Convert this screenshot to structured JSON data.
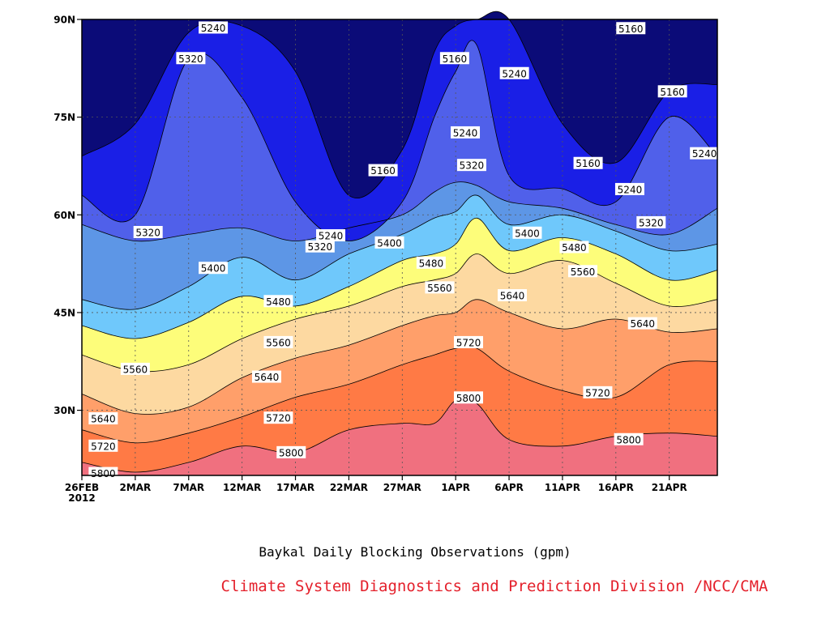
{
  "chart_data": {
    "type": "contour",
    "title": "Baykal Daily Blocking Observations (gpm)",
    "x_ticks": [
      {
        "d": 0,
        "label": "26FEB",
        "sub": "2012"
      },
      {
        "d": 5,
        "label": "2MAR"
      },
      {
        "d": 10,
        "label": "7MAR"
      },
      {
        "d": 15,
        "label": "12MAR"
      },
      {
        "d": 20,
        "label": "17MAR"
      },
      {
        "d": 25,
        "label": "22MAR"
      },
      {
        "d": 30,
        "label": "27MAR"
      },
      {
        "d": 35,
        "label": "1APR"
      },
      {
        "d": 40,
        "label": "6APR"
      },
      {
        "d": 45,
        "label": "11APR"
      },
      {
        "d": 50,
        "label": "16APR"
      },
      {
        "d": 55,
        "label": "21APR"
      }
    ],
    "x_range_days": [
      0,
      59.5
    ],
    "y_ticks": [
      {
        "v": 30,
        "label": "30N"
      },
      {
        "v": 45,
        "label": "45N"
      },
      {
        "v": 60,
        "label": "60N"
      },
      {
        "v": 75,
        "label": "75N"
      },
      {
        "v": 90,
        "label": "90N"
      }
    ],
    "y_range": [
      20,
      90
    ],
    "grid": true,
    "levels": [
      5800,
      5720,
      5640,
      5560,
      5480,
      5400,
      5320,
      5240,
      5160
    ],
    "fill_colors": [
      "#f0707f",
      "#ff7a45",
      "#ff9f6a",
      "#fdd9a1",
      "#fdfd7a",
      "#6fc8fb",
      "#5d96e6",
      "#5060ea",
      "#1a1fe6",
      "#0b0b78"
    ],
    "contours": [
      {
        "level": 5800,
        "x": [
          0,
          5,
          10,
          15,
          20,
          25,
          30,
          33,
          35,
          37,
          40,
          45,
          50,
          55,
          59.5
        ],
        "y": [
          22,
          20.5,
          22,
          24.5,
          23.5,
          27,
          28,
          28,
          31.5,
          31,
          25.5,
          24.5,
          26,
          26.5,
          26
        ]
      },
      {
        "level": 5720,
        "x": [
          0,
          5,
          10,
          15,
          20,
          25,
          30,
          33,
          35,
          37,
          40,
          45,
          50,
          55,
          59.5
        ],
        "y": [
          27,
          25,
          26.5,
          29,
          32,
          34,
          37,
          38.5,
          39.5,
          39.5,
          36,
          33,
          32,
          37,
          37.5
        ]
      },
      {
        "level": 5640,
        "x": [
          0,
          5,
          10,
          15,
          20,
          25,
          30,
          33,
          35,
          37,
          40,
          45,
          50,
          55,
          59.5
        ],
        "y": [
          32.5,
          29.5,
          30.5,
          35,
          38,
          40,
          43,
          44.5,
          45,
          47,
          45,
          42.5,
          44,
          42,
          42.5
        ]
      },
      {
        "level": 5560,
        "x": [
          0,
          5,
          10,
          15,
          20,
          25,
          30,
          33,
          35,
          37,
          40,
          45,
          50,
          55,
          59.5
        ],
        "y": [
          38.5,
          36,
          37,
          41,
          44,
          46,
          49,
          50,
          51,
          54,
          51,
          53,
          49.5,
          46,
          47
        ]
      },
      {
        "level": 5480,
        "x": [
          0,
          5,
          10,
          15,
          20,
          25,
          30,
          33,
          35,
          37,
          40,
          45,
          50,
          55,
          59.5
        ],
        "y": [
          43,
          41,
          43.5,
          47.5,
          46,
          49,
          53,
          54,
          55.5,
          59.5,
          54.5,
          56.5,
          54,
          50,
          51.5
        ]
      },
      {
        "level": 5400,
        "x": [
          0,
          5,
          10,
          15,
          20,
          25,
          30,
          33,
          35,
          37,
          40,
          45,
          50,
          55,
          59.5
        ],
        "y": [
          47,
          45.5,
          49,
          53.5,
          50,
          54,
          57,
          59.5,
          60.5,
          63,
          58.5,
          60,
          57.5,
          54.5,
          55.5
        ]
      },
      {
        "level": 5320,
        "x": [
          0,
          5,
          10,
          15,
          20,
          25,
          30,
          33,
          35,
          37,
          40,
          45,
          50,
          55,
          59.5
        ],
        "y": [
          58.5,
          56,
          57,
          58,
          56,
          58,
          60,
          63.5,
          65,
          64.5,
          62,
          61,
          58.5,
          57,
          61
        ]
      },
      {
        "level": 5240,
        "x": [
          0,
          5,
          10,
          15,
          20,
          25,
          30,
          33,
          35,
          37,
          40,
          45,
          50,
          55,
          59.5
        ],
        "y": [
          63,
          60,
          84,
          78,
          62,
          56,
          62,
          75,
          82,
          86,
          66,
          64,
          62,
          75,
          69
        ]
      },
      {
        "level": 5160,
        "x": [
          0,
          5,
          10,
          15,
          20,
          25,
          30,
          33,
          35,
          37,
          40,
          45,
          50,
          55,
          59.5
        ],
        "y": [
          69,
          74,
          88,
          89,
          82,
          63,
          70,
          85,
          89,
          90,
          90,
          74,
          68,
          79,
          80
        ]
      }
    ],
    "contour_labels": [
      {
        "text": "5800",
        "d": 2.0,
        "lat": 20.3
      },
      {
        "text": "5720",
        "d": 2.0,
        "lat": 24.5
      },
      {
        "text": "5640",
        "d": 2.0,
        "lat": 28.7
      },
      {
        "text": "5560",
        "d": 5.0,
        "lat": 36.3
      },
      {
        "text": "5320",
        "d": 6.2,
        "lat": 57.3
      },
      {
        "text": "5320",
        "d": 10.2,
        "lat": 84.0
      },
      {
        "text": "5240",
        "d": 12.3,
        "lat": 88.7
      },
      {
        "text": "5400",
        "d": 12.3,
        "lat": 51.8
      },
      {
        "text": "5800",
        "d": 19.6,
        "lat": 23.5
      },
      {
        "text": "5720",
        "d": 18.4,
        "lat": 28.8
      },
      {
        "text": "5640",
        "d": 17.3,
        "lat": 35.1
      },
      {
        "text": "5560",
        "d": 18.4,
        "lat": 40.4
      },
      {
        "text": "5480",
        "d": 18.4,
        "lat": 46.7
      },
      {
        "text": "5320",
        "d": 22.3,
        "lat": 55.1
      },
      {
        "text": "5240",
        "d": 23.3,
        "lat": 56.8
      },
      {
        "text": "5160",
        "d": 28.2,
        "lat": 66.8
      },
      {
        "text": "5400",
        "d": 28.8,
        "lat": 55.7
      },
      {
        "text": "5480",
        "d": 32.7,
        "lat": 52.6
      },
      {
        "text": "5560",
        "d": 33.5,
        "lat": 48.8
      },
      {
        "text": "5160",
        "d": 34.9,
        "lat": 84.0
      },
      {
        "text": "5240",
        "d": 35.9,
        "lat": 72.6
      },
      {
        "text": "5320",
        "d": 36.5,
        "lat": 67.6
      },
      {
        "text": "5720",
        "d": 36.2,
        "lat": 40.4
      },
      {
        "text": "5800",
        "d": 36.2,
        "lat": 31.9
      },
      {
        "text": "5640",
        "d": 40.3,
        "lat": 47.6
      },
      {
        "text": "5240",
        "d": 40.5,
        "lat": 81.7
      },
      {
        "text": "5400",
        "d": 41.7,
        "lat": 57.2
      },
      {
        "text": "5480",
        "d": 46.1,
        "lat": 55.0
      },
      {
        "text": "5560",
        "d": 46.9,
        "lat": 51.3
      },
      {
        "text": "5160",
        "d": 47.4,
        "lat": 67.9
      },
      {
        "text": "5720",
        "d": 48.3,
        "lat": 32.7
      },
      {
        "text": "5240",
        "d": 51.3,
        "lat": 63.9
      },
      {
        "text": "5800",
        "d": 51.2,
        "lat": 25.5
      },
      {
        "text": "5160",
        "d": 51.4,
        "lat": 88.6
      },
      {
        "text": "5640",
        "d": 52.5,
        "lat": 43.3
      },
      {
        "text": "5320",
        "d": 53.3,
        "lat": 58.8
      },
      {
        "text": "5160",
        "d": 55.3,
        "lat": 78.9
      },
      {
        "text": "5240",
        "d": 58.3,
        "lat": 69.4
      }
    ]
  },
  "caption": {
    "title": "Baykal Daily Blocking Observations (gpm)",
    "credit": "Climate System Diagnostics and Prediction Division /NCC/CMA"
  }
}
